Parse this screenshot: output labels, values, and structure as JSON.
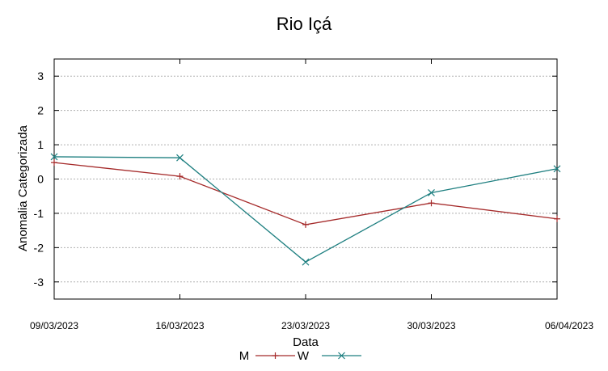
{
  "chart_data": {
    "type": "line",
    "title": "Rio Içá",
    "xlabel": "Data",
    "ylabel": "Anomalia Categorizada",
    "categories": [
      "09/03/2023",
      "16/03/2023",
      "23/03/2023",
      "30/03/2023",
      "06/04/2023"
    ],
    "yticks": [
      "3",
      "2",
      "1",
      "0",
      "-1",
      "-2",
      "-3"
    ],
    "ylim": [
      -3.5,
      3.5
    ],
    "grid": true,
    "legend_position": "bottom-center",
    "series": [
      {
        "name": "M",
        "color": "#a52a2a",
        "marker": "plus",
        "values": [
          0.48,
          0.08,
          -1.33,
          -0.7,
          -1.16
        ]
      },
      {
        "name": "W",
        "color": "#1e7f80",
        "marker": "x",
        "values": [
          0.65,
          0.62,
          -2.42,
          -0.4,
          0.3
        ]
      }
    ]
  }
}
